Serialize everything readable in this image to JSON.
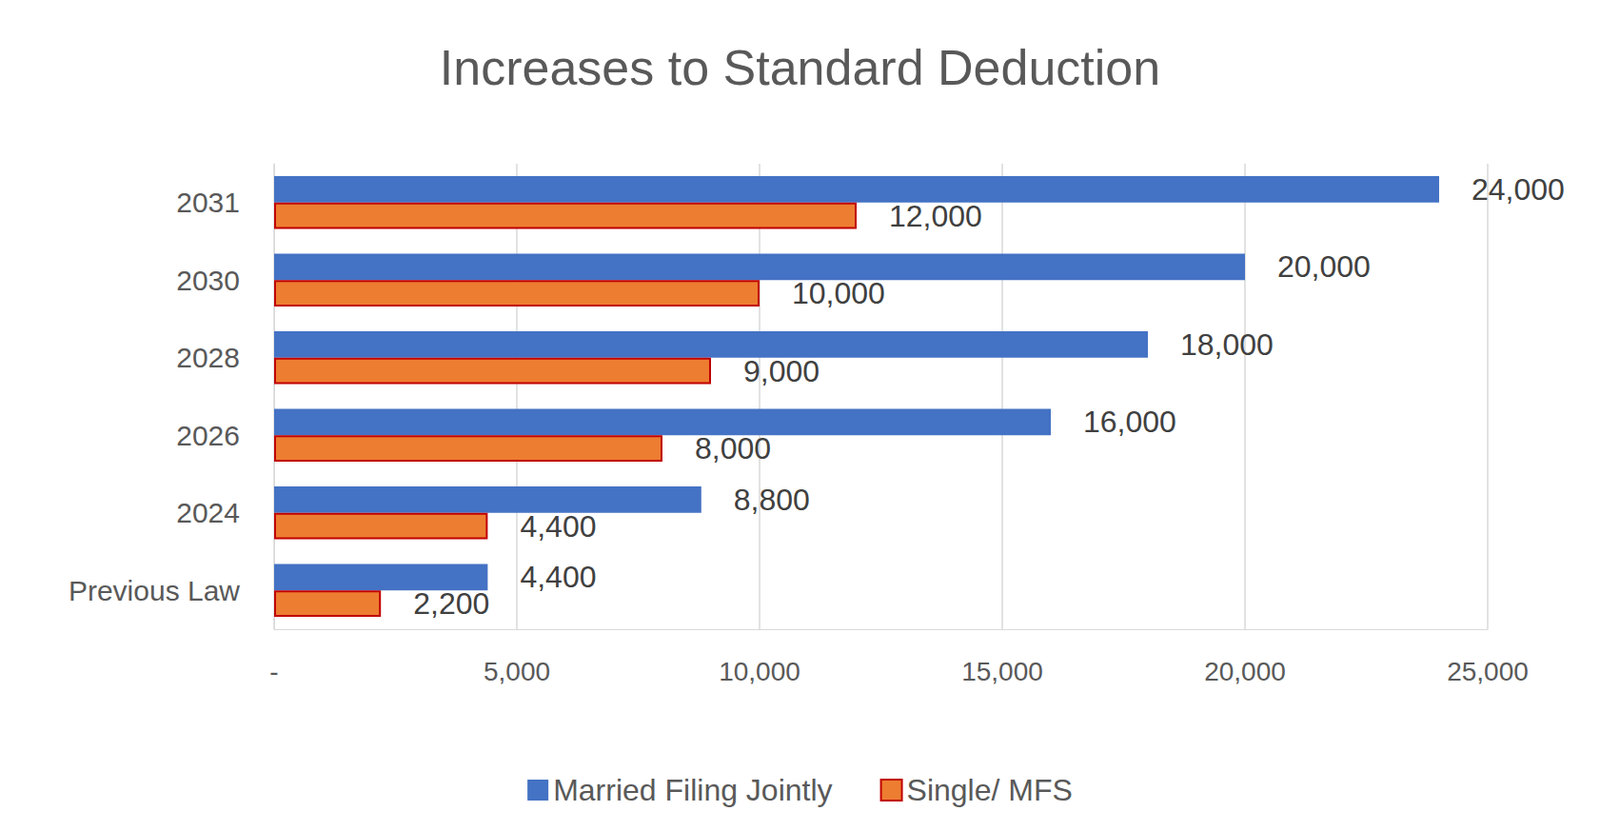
{
  "chart_data": {
    "type": "bar",
    "title": "Increases to Standard Deduction",
    "orientation": "horizontal",
    "categories": [
      "Previous Law",
      "2024",
      "2026",
      "2028",
      "2030",
      "2031"
    ],
    "series": [
      {
        "name": "Married Filing Jointly",
        "color": "#4472c4",
        "values": [
          4400,
          8800,
          16000,
          18000,
          20000,
          24000
        ],
        "value_labels": [
          "4,400",
          "8,800",
          "16,000",
          "18,000",
          "20,000",
          "24,000"
        ]
      },
      {
        "name": "Single/ MFS",
        "color": "#ed7d31",
        "values": [
          2200,
          4400,
          8000,
          9000,
          10000,
          12000
        ],
        "value_labels": [
          "2,200",
          "4,400",
          "8,000",
          "9,000",
          "10,000",
          "12,000"
        ]
      }
    ],
    "xlim": [
      0,
      25000
    ],
    "xticks": [
      {
        "value": 0,
        "label": "-"
      },
      {
        "value": 5000,
        "label": "5,000"
      },
      {
        "value": 10000,
        "label": "10,000"
      },
      {
        "value": 15000,
        "label": "15,000"
      },
      {
        "value": 20000,
        "label": "20,000"
      },
      {
        "value": 25000,
        "label": "25,000"
      }
    ],
    "grid": true,
    "data_labels": true,
    "legend": "bottom"
  }
}
